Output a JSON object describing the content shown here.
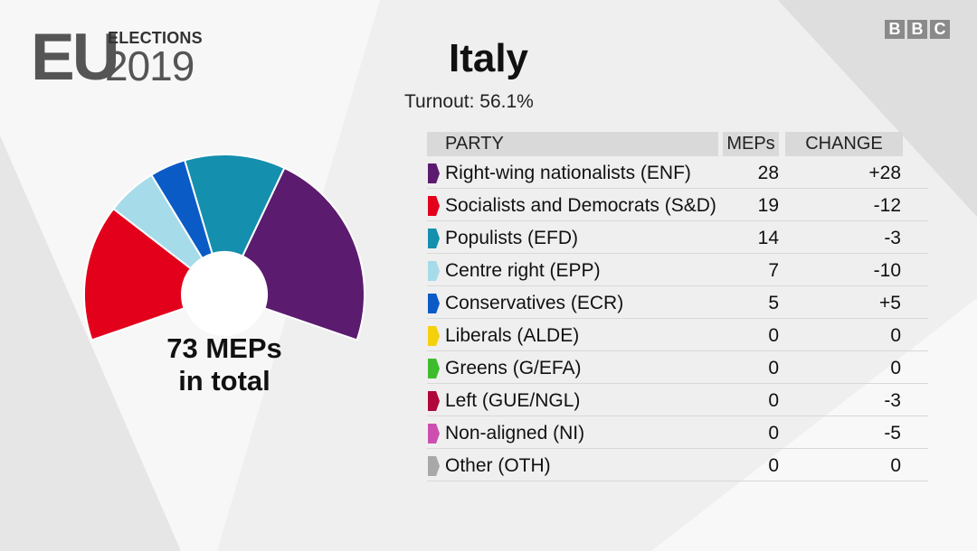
{
  "logo": {
    "eu": "EU",
    "elections": "ELECTIONS",
    "year": "2019"
  },
  "broadcaster": [
    "B",
    "B",
    "C"
  ],
  "title": "Italy",
  "turnout": "Turnout: 56.1%",
  "total_label_line1": "73 MEPs",
  "total_label_line2": "in total",
  "table": {
    "headers": {
      "party": "PARTY",
      "meps": "MEPs",
      "change": "CHANGE"
    },
    "rows": [
      {
        "party": "Right-wing nationalists (ENF)",
        "meps": "28",
        "change": "+28",
        "color": "#5b1b6e"
      },
      {
        "party": "Socialists and Democrats (S&D)",
        "meps": "19",
        "change": "-12",
        "color": "#e3001b"
      },
      {
        "party": "Populists (EFD)",
        "meps": "14",
        "change": "-3",
        "color": "#148fae"
      },
      {
        "party": "Centre right (EPP)",
        "meps": "7",
        "change": "-10",
        "color": "#a6dbe9"
      },
      {
        "party": "Conservatives (ECR)",
        "meps": "5",
        "change": "+5",
        "color": "#0b5bc7"
      },
      {
        "party": "Liberals (ALDE)",
        "meps": "0",
        "change": "0",
        "color": "#f5d10c"
      },
      {
        "party": "Greens (G/EFA)",
        "meps": "0",
        "change": "0",
        "color": "#3fbc2e"
      },
      {
        "party": "Left (GUE/NGL)",
        "meps": "0",
        "change": "-3",
        "color": "#b0063b"
      },
      {
        "party": "Non-aligned (NI)",
        "meps": "0",
        "change": "-5",
        "color": "#cc4fb0"
      },
      {
        "party": "Other (OTH)",
        "meps": "0",
        "change": "0",
        "color": "#a8a8a8"
      }
    ]
  },
  "chart_data": {
    "type": "pie",
    "title": "Italy",
    "total": 73,
    "categories": [
      "Socialists and Democrats (S&D)",
      "Centre right (EPP)",
      "Conservatives (ECR)",
      "Populists (EFD)",
      "Right-wing nationalists (ENF)"
    ],
    "values": [
      19,
      7,
      5,
      14,
      28
    ],
    "colors": [
      "#e3001b",
      "#a6dbe9",
      "#0b5bc7",
      "#148fae",
      "#5b1b6e"
    ]
  }
}
